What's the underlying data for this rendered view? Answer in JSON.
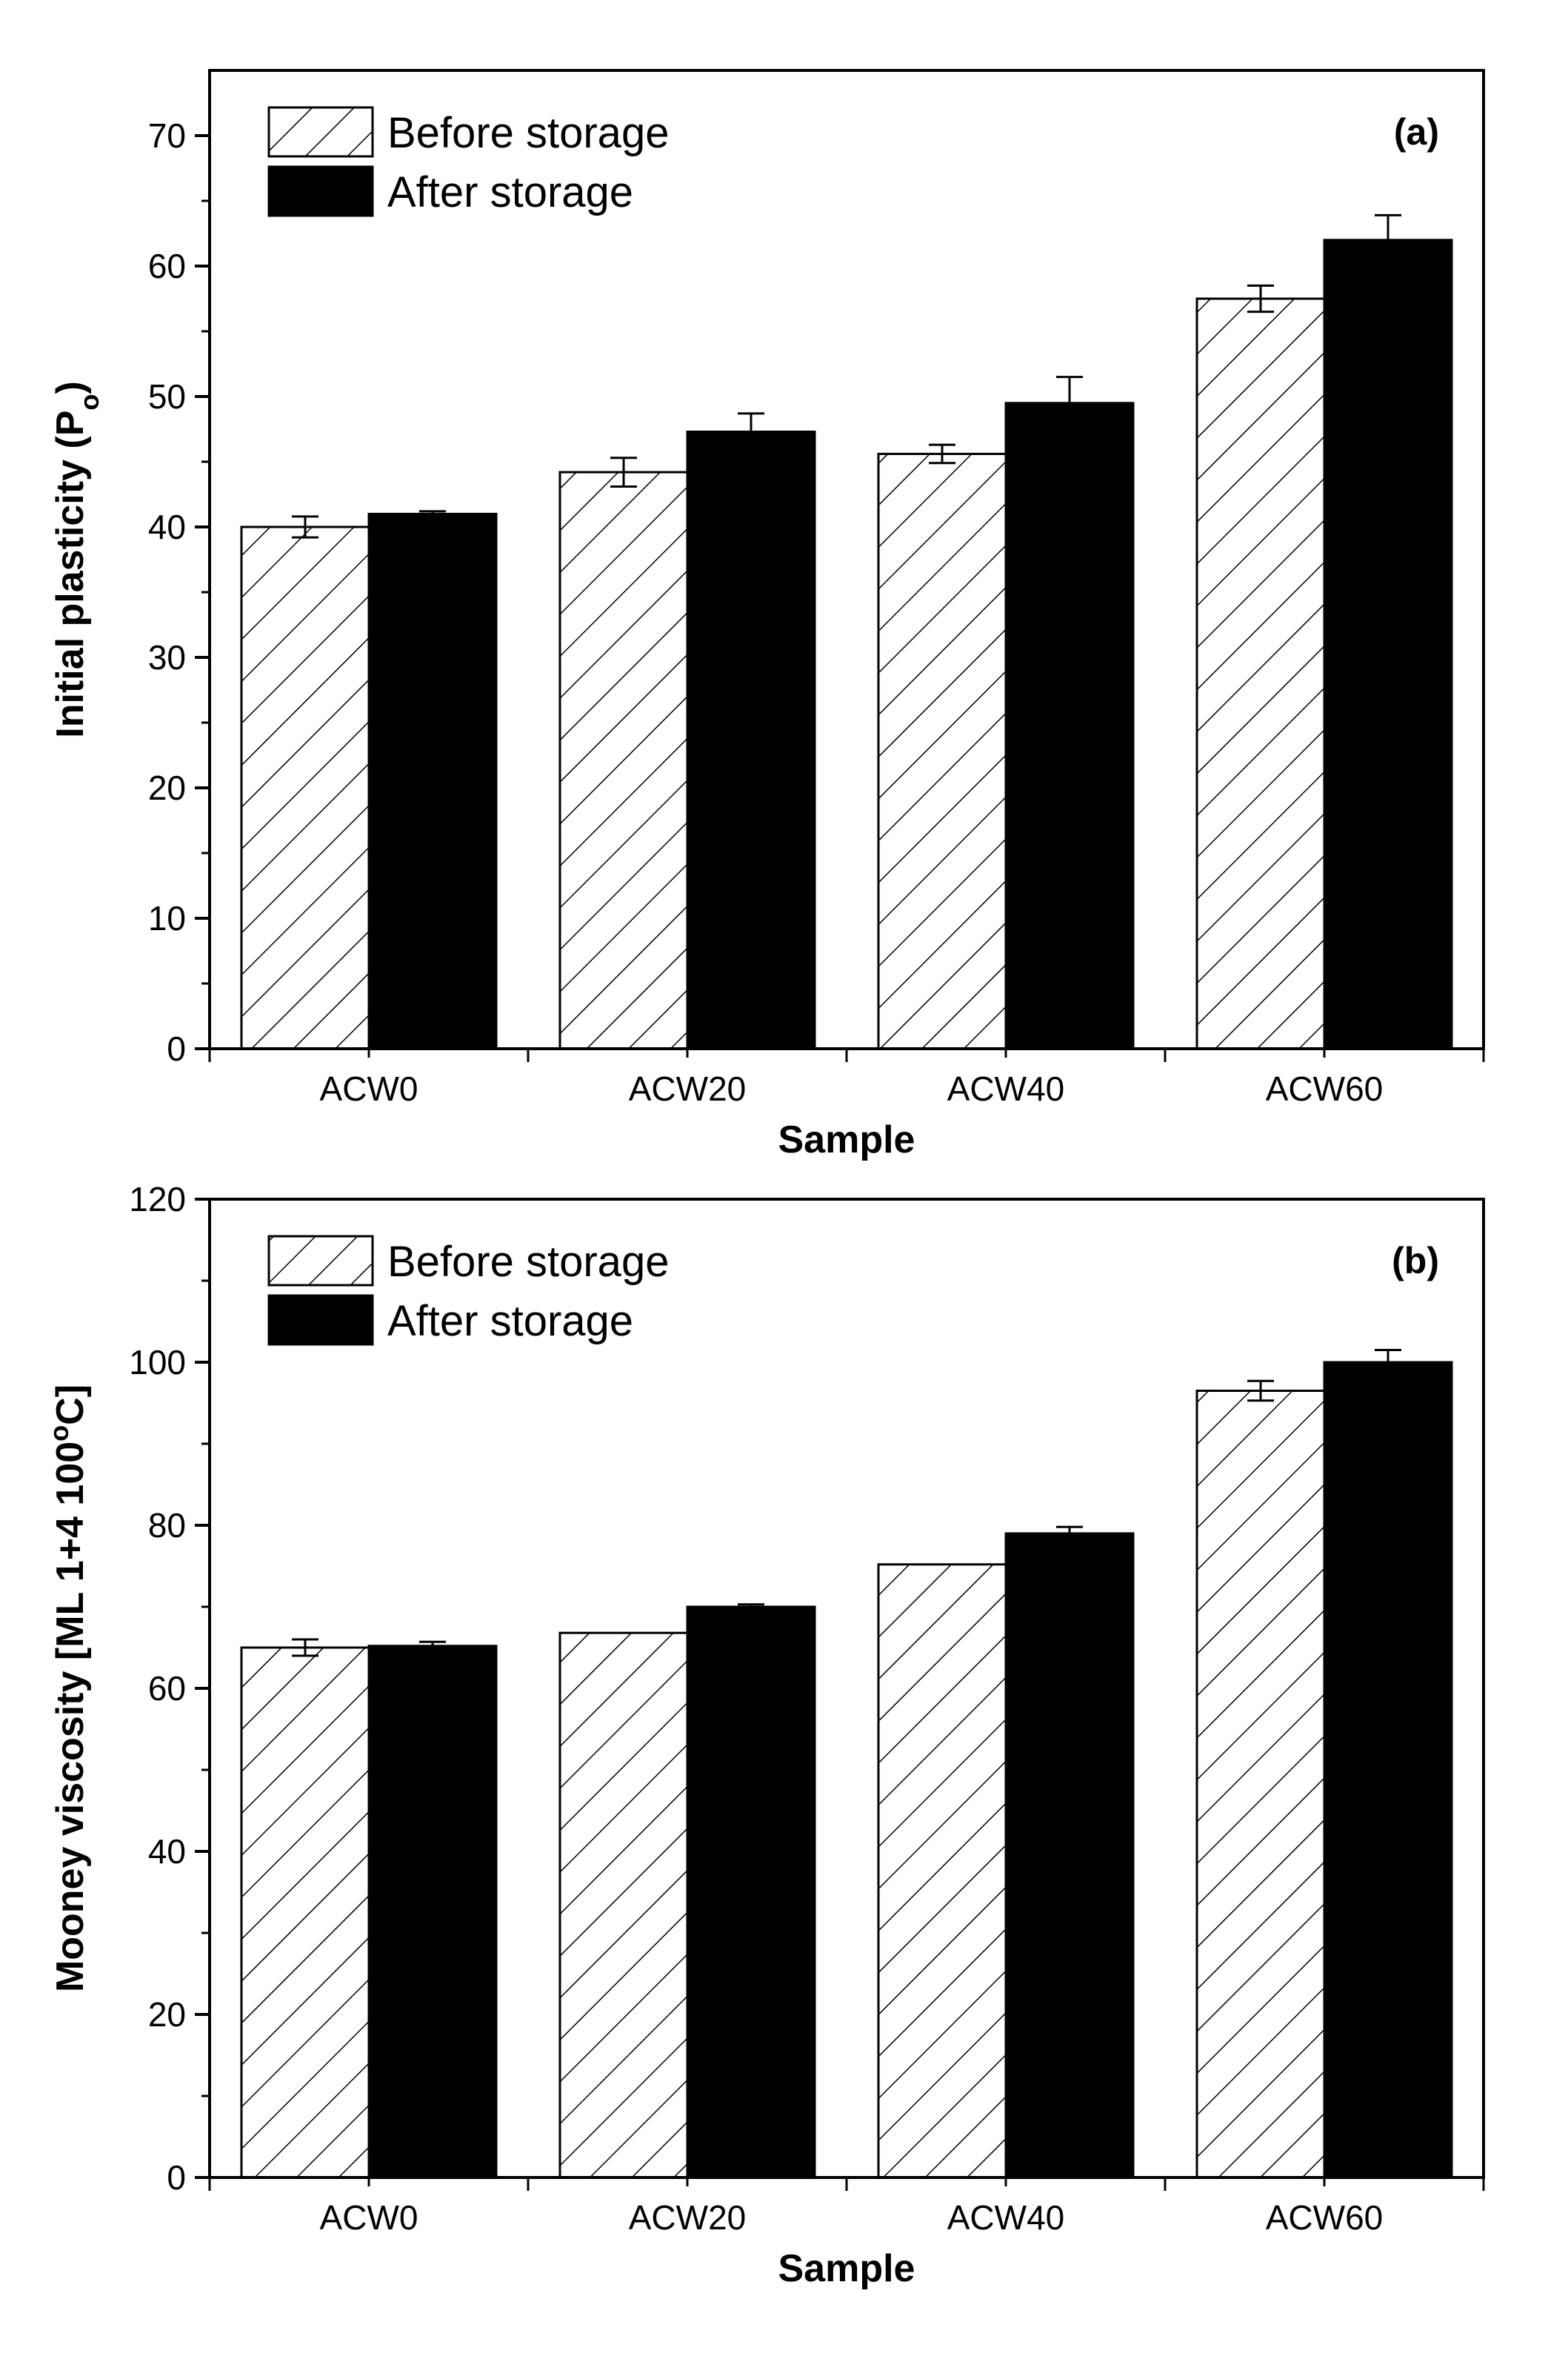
{
  "chart_data": [
    {
      "type": "bar",
      "panel_label": "(a)",
      "categories": [
        "ACW0",
        "ACW20",
        "ACW40",
        "ACW60"
      ],
      "xlabel": "Sample",
      "ylabel_main": "Initial plasticity (P",
      "ylabel_sub": "o",
      "ylabel_tail": ")",
      "ylim": [
        0,
        75
      ],
      "yticks": [
        0,
        10,
        20,
        30,
        40,
        50,
        60,
        70
      ],
      "ytick_labels": [
        "0",
        "10",
        "20",
        "30",
        "40",
        "50",
        "60",
        "70"
      ],
      "legend_position": "top-left",
      "series": [
        {
          "name": "Before storage",
          "pattern": "hatched",
          "values": [
            40.0,
            44.2,
            45.6,
            57.5
          ],
          "errors": [
            0.8,
            1.1,
            0.7,
            1.0
          ]
        },
        {
          "name": "After storage",
          "pattern": "solid",
          "color": "#000000",
          "values": [
            41.0,
            47.3,
            49.5,
            62.0
          ],
          "errors": [
            0.2,
            1.4,
            2.0,
            1.9
          ]
        }
      ]
    },
    {
      "type": "bar",
      "panel_label": "(b)",
      "categories": [
        "ACW0",
        "ACW20",
        "ACW40",
        "ACW60"
      ],
      "xlabel": "Sample",
      "ylabel_main": "Mooney viscosity [ML 1+4 100",
      "ylabel_sup": "o",
      "ylabel_tail": "C]",
      "ylim": [
        0,
        120
      ],
      "yticks": [
        0,
        20,
        40,
        60,
        80,
        100,
        120
      ],
      "ytick_labels": [
        "0",
        "20",
        "40",
        "60",
        "80",
        "100",
        "120"
      ],
      "legend_position": "top-left",
      "series": [
        {
          "name": "Before storage",
          "pattern": "hatched",
          "values": [
            65.0,
            66.8,
            75.2,
            96.5
          ],
          "errors": [
            1.0,
            0.0,
            0.0,
            1.2
          ]
        },
        {
          "name": "After storage",
          "pattern": "solid",
          "color": "#000000",
          "values": [
            65.2,
            70.0,
            79.0,
            100.0
          ],
          "errors": [
            0.5,
            0.3,
            0.8,
            1.5
          ]
        }
      ]
    }
  ]
}
